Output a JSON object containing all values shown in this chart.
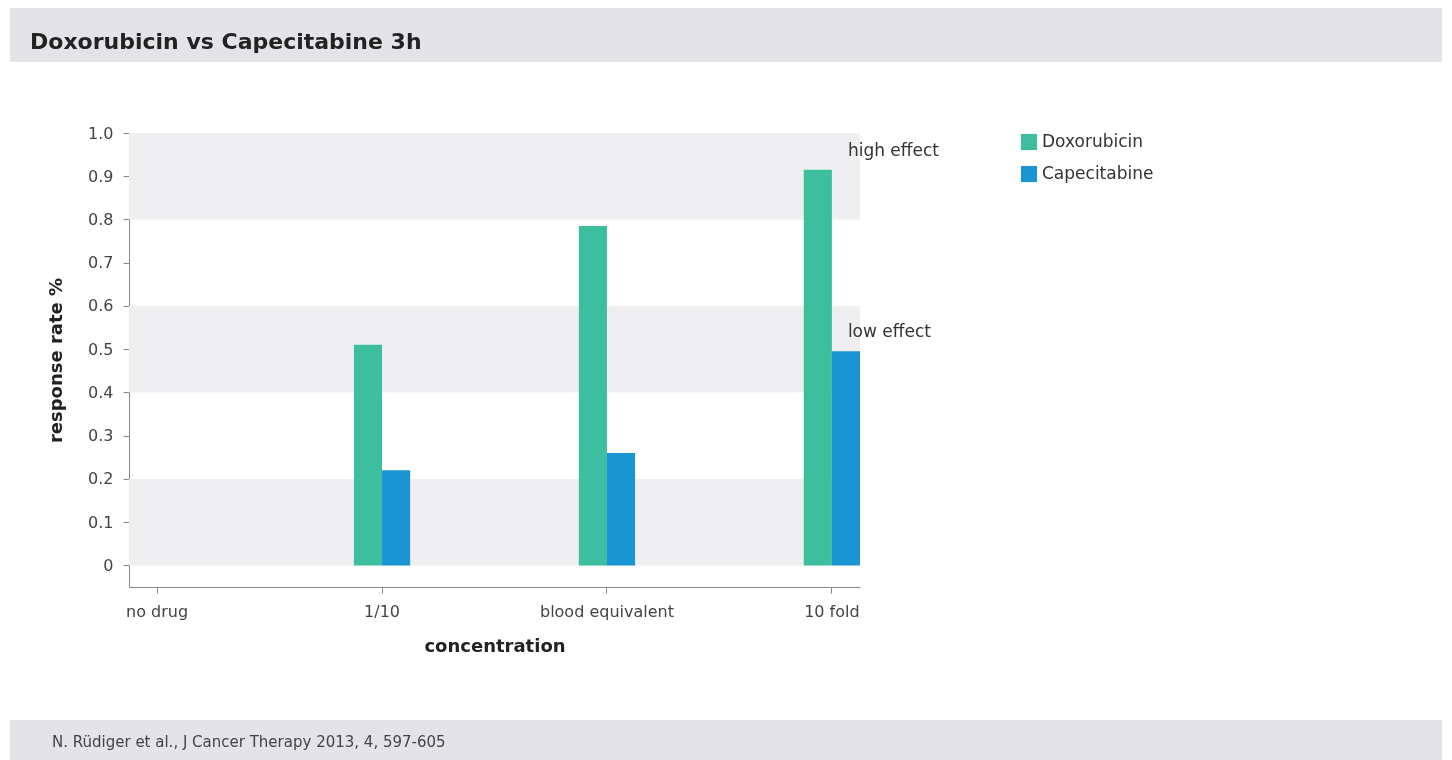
{
  "chart_data": {
    "type": "bar",
    "title": "Doxorubicin vs Capecitabine 3h",
    "xlabel": "concentration",
    "ylabel": "response rate %",
    "categories": [
      "no drug",
      "1/10",
      "blood equivalent",
      "10 fold"
    ],
    "series": [
      {
        "name": "Doxorubicin",
        "color": "#3dbf9f",
        "values": [
          null,
          0.51,
          0.785,
          0.915
        ]
      },
      {
        "name": "Capecitabine",
        "color": "#1a95d3",
        "values": [
          null,
          0.22,
          0.26,
          0.495
        ]
      }
    ],
    "ylim": [
      -0.05,
      1.0
    ],
    "yticks": [
      0,
      0.1,
      0.2,
      0.3,
      0.4,
      0.5,
      0.6,
      0.7,
      0.8,
      0.9,
      {
        "value": 1,
        "label": "1.0"
      }
    ],
    "bands": [
      {
        "axis": "y",
        "from": 0,
        "to": 0.2,
        "color": "#efeff1"
      },
      {
        "axis": "y",
        "from": 0.4,
        "to": 0.6,
        "color": "#efeff1"
      },
      {
        "axis": "y",
        "from": 0.8,
        "to": 1.0,
        "color": "#efeff1"
      }
    ],
    "legend": "right",
    "annotations": [
      {
        "text": "high effect",
        "x": "10 fold",
        "y": 0.915
      },
      {
        "text": "low effect",
        "x": "10 fold",
        "y": 0.495
      },
      "N. Rüdiger et al., J Cancer Therapy 2013, 4, 597-605"
    ]
  }
}
